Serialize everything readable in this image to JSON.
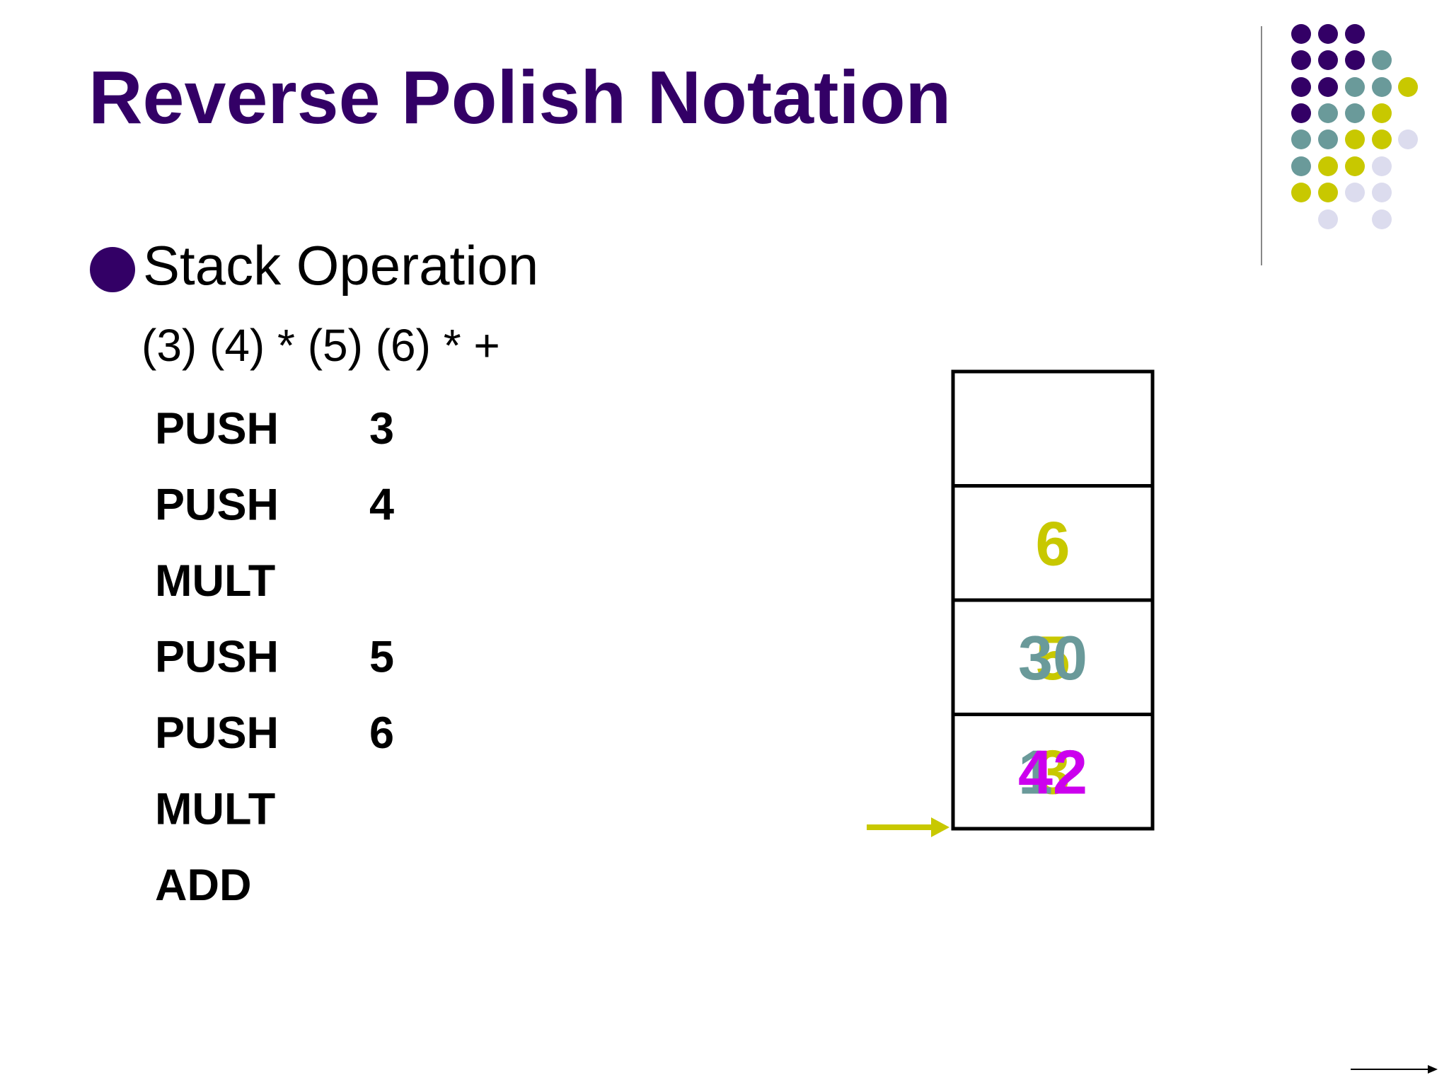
{
  "slide": {
    "title": "Reverse Polish Notation",
    "bullet": "Stack Operation",
    "expression": "(3) (4) * (5) (6) * +",
    "instructions": [
      [
        "PUSH",
        "3"
      ],
      [
        "PUSH",
        "4"
      ],
      [
        "MULT"
      ],
      [
        "PUSH",
        "5"
      ],
      [
        "PUSH",
        "6"
      ],
      [
        "MULT"
      ],
      [
        "ADD"
      ]
    ],
    "stack": [
      [],
      [
        {
          "text": "6",
          "color": "#c8c800"
        }
      ],
      [
        {
          "text": "5",
          "color": "#c8c800"
        },
        {
          "text": "30",
          "color": "#6a9a9a"
        }
      ],
      [
        {
          "text": "3",
          "color": "#c8c800"
        },
        {
          "text": "12",
          "color": "#6a9a9a"
        },
        {
          "text": "42",
          "color": "#cc00ee"
        }
      ]
    ]
  }
}
